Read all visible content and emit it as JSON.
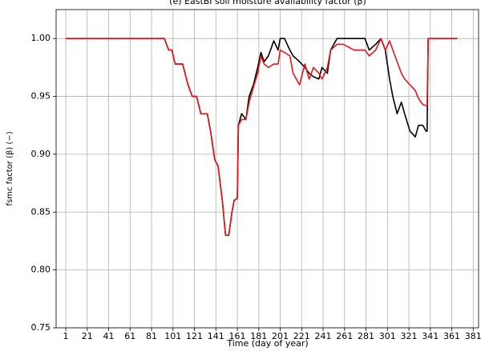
{
  "chart_data": {
    "type": "line",
    "title": "(e) EastBI soil moisture availability factor (β)",
    "xlabel": "Time (day of year)",
    "ylabel": "fsmc factor (β) (−)",
    "x": [
      1,
      93,
      97,
      100,
      103,
      110,
      115,
      119,
      123,
      127,
      133,
      136,
      140,
      143,
      147,
      150,
      153,
      156,
      158,
      161,
      162,
      165,
      169,
      172,
      176,
      180,
      183,
      186,
      190,
      195,
      199,
      201,
      205,
      210,
      213,
      219,
      224,
      228,
      232,
      237,
      240,
      245,
      248,
      254,
      260,
      270,
      280,
      284,
      290,
      295,
      299,
      303,
      306,
      310,
      314,
      317,
      322,
      327,
      330,
      334,
      337,
      338,
      339,
      366
    ],
    "series": [
      {
        "color": "#000000",
        "values": [
          1.0,
          1.0,
          0.99,
          0.99,
          0.978,
          0.978,
          0.96,
          0.95,
          0.95,
          0.935,
          0.935,
          0.92,
          0.895,
          0.89,
          0.86,
          0.83,
          0.83,
          0.85,
          0.86,
          0.862,
          0.925,
          0.935,
          0.93,
          0.95,
          0.96,
          0.975,
          0.988,
          0.98,
          0.985,
          0.998,
          0.99,
          1.0,
          1.0,
          0.99,
          0.985,
          0.98,
          0.975,
          0.97,
          0.967,
          0.965,
          0.975,
          0.97,
          0.99,
          1.0,
          1.0,
          1.0,
          1.0,
          0.99,
          0.995,
          1.0,
          0.99,
          0.965,
          0.95,
          0.935,
          0.945,
          0.935,
          0.92,
          0.915,
          0.925,
          0.925,
          0.92,
          0.92,
          1.0,
          1.0
        ]
      },
      {
        "color": "#e8141c",
        "values": [
          1.0,
          1.0,
          0.99,
          0.99,
          0.978,
          0.978,
          0.96,
          0.95,
          0.95,
          0.935,
          0.935,
          0.92,
          0.895,
          0.89,
          0.86,
          0.83,
          0.83,
          0.85,
          0.86,
          0.862,
          0.925,
          0.93,
          0.93,
          0.945,
          0.958,
          0.97,
          0.985,
          0.978,
          0.975,
          0.978,
          0.978,
          0.99,
          0.988,
          0.985,
          0.97,
          0.96,
          0.978,
          0.965,
          0.975,
          0.97,
          0.965,
          0.975,
          0.99,
          0.995,
          0.995,
          0.99,
          0.99,
          0.985,
          0.99,
          1.0,
          0.99,
          0.998,
          0.99,
          0.98,
          0.97,
          0.965,
          0.96,
          0.955,
          0.948,
          0.943,
          0.942,
          0.942,
          1.0,
          1.0
        ]
      }
    ],
    "xlim": [
      -8,
      386
    ],
    "ylim": [
      0.75,
      1.025
    ],
    "xticks": [
      1,
      21,
      41,
      61,
      81,
      101,
      121,
      141,
      161,
      181,
      201,
      221,
      241,
      261,
      281,
      301,
      321,
      341,
      361,
      381
    ],
    "yticks": [
      {
        "value": 0.75,
        "label": "0.75"
      },
      {
        "value": 0.8,
        "label": "0.80"
      },
      {
        "value": 0.85,
        "label": "0.85"
      },
      {
        "value": 0.9,
        "label": "0.90"
      },
      {
        "value": 0.95,
        "label": "0.95"
      },
      {
        "value": 1.0,
        "label": "1.00"
      }
    ],
    "grid": true
  }
}
